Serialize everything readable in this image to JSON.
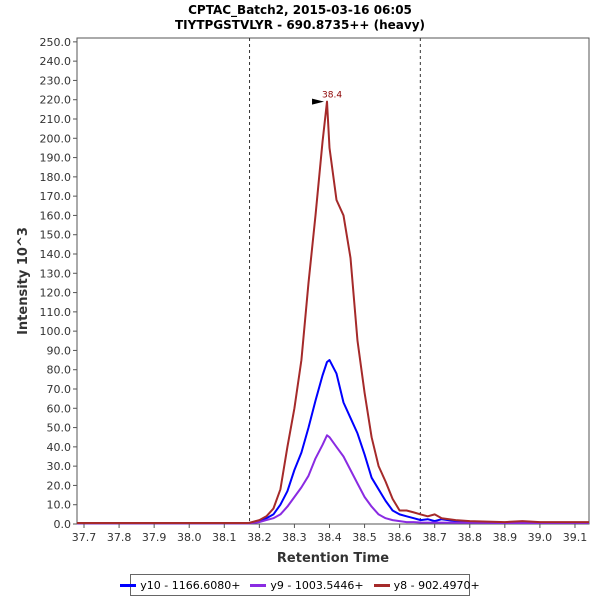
{
  "chart_data": {
    "type": "line",
    "title": "CPTAC_Batch2, 2015-03-16 06:05",
    "subtitle": "TIYTPGSTVLYR - 690.8735++ (heavy)",
    "xlabel": "Retention Time",
    "ylabel": "Intensity 10^3",
    "xlim": [
      37.68,
      39.14
    ],
    "ylim": [
      0,
      252
    ],
    "x_ticks": [
      37.7,
      37.8,
      37.9,
      38.0,
      38.1,
      38.2,
      38.3,
      38.4,
      38.5,
      38.6,
      38.7,
      38.8,
      38.9,
      39.0,
      39.1
    ],
    "x_tick_labels": [
      "37.7",
      "37.8",
      "37.9",
      "38.0",
      "38.1",
      "38.2",
      "38.3",
      "38.4",
      "38.5",
      "38.6",
      "38.7",
      "38.8",
      "38.9",
      "39.0",
      "39.1"
    ],
    "y_ticks": [
      0,
      10,
      20,
      30,
      40,
      50,
      60,
      70,
      80,
      90,
      100,
      110,
      120,
      130,
      140,
      150,
      160,
      170,
      180,
      190,
      200,
      210,
      220,
      230,
      240,
      250
    ],
    "y_tick_labels": [
      "0.0",
      "10.0",
      "20.0",
      "30.0",
      "40.0",
      "50.0",
      "60.0",
      "70.0",
      "80.0",
      "90.0",
      "100.0",
      "110.0",
      "120.0",
      "130.0",
      "140.0",
      "150.0",
      "160.0",
      "170.0",
      "180.0",
      "190.0",
      "200.0",
      "210.0",
      "220.0",
      "230.0",
      "240.0",
      "250.0"
    ],
    "boundaries": [
      38.172,
      38.659
    ],
    "peak_annotation": {
      "label": "38.4",
      "x": 38.393,
      "y": 219,
      "color": "#8b0000"
    },
    "legend_position": "bottom-center",
    "series": [
      {
        "name": "y10 - 1166.6080+",
        "color": "#0000ff",
        "x": [
          37.68,
          38.0,
          38.17,
          38.2,
          38.22,
          38.24,
          38.26,
          38.28,
          38.3,
          38.32,
          38.34,
          38.36,
          38.38,
          38.393,
          38.4,
          38.42,
          38.44,
          38.46,
          38.48,
          38.5,
          38.52,
          38.54,
          38.56,
          38.58,
          38.6,
          38.62,
          38.64,
          38.66,
          38.68,
          38.7,
          38.72,
          38.76,
          38.8,
          38.9,
          39.0,
          39.14
        ],
        "y": [
          0.5,
          0.5,
          0.5,
          1.5,
          3,
          5,
          10,
          17,
          28,
          37,
          50,
          64,
          77,
          84,
          85,
          78,
          63,
          55,
          47,
          36,
          24,
          18,
          12,
          7,
          5,
          4,
          3,
          2,
          2.5,
          1.5,
          2.5,
          1.5,
          1,
          0.5,
          0.5,
          0.5
        ]
      },
      {
        "name": "y9 - 1003.5446+",
        "color": "#8a2be2",
        "x": [
          37.68,
          38.0,
          38.17,
          38.2,
          38.22,
          38.24,
          38.26,
          38.28,
          38.3,
          38.32,
          38.34,
          38.36,
          38.38,
          38.393,
          38.4,
          38.42,
          38.44,
          38.46,
          38.48,
          38.5,
          38.52,
          38.54,
          38.56,
          38.58,
          38.6,
          38.62,
          38.64,
          38.66,
          38.7,
          38.8,
          38.9,
          39.0,
          39.14
        ],
        "y": [
          0.3,
          0.3,
          0.3,
          1,
          2,
          3,
          5,
          9,
          14,
          19,
          25,
          34,
          41,
          46,
          45,
          40,
          35,
          28,
          21,
          14,
          9,
          5,
          3,
          2,
          1.5,
          1,
          1,
          0.8,
          0.7,
          0.6,
          0.5,
          0.5,
          0.5
        ]
      },
      {
        "name": "y8 - 902.4970+",
        "color": "#a52a2a",
        "x": [
          37.68,
          38.0,
          38.17,
          38.2,
          38.22,
          38.24,
          38.26,
          38.28,
          38.3,
          38.32,
          38.34,
          38.36,
          38.38,
          38.393,
          38.4,
          38.42,
          38.44,
          38.46,
          38.48,
          38.5,
          38.52,
          38.54,
          38.56,
          38.58,
          38.6,
          38.62,
          38.64,
          38.66,
          38.68,
          38.7,
          38.72,
          38.76,
          38.8,
          38.9,
          38.95,
          39.0,
          39.14
        ],
        "y": [
          0.5,
          0.5,
          0.5,
          2,
          4,
          8,
          18,
          40,
          60,
          85,
          125,
          160,
          198,
          219,
          195,
          168,
          160,
          138,
          95,
          68,
          45,
          30,
          22,
          13,
          7,
          7,
          6,
          5,
          4,
          5,
          3,
          2,
          1.5,
          1,
          1.5,
          1,
          1
        ]
      }
    ]
  }
}
